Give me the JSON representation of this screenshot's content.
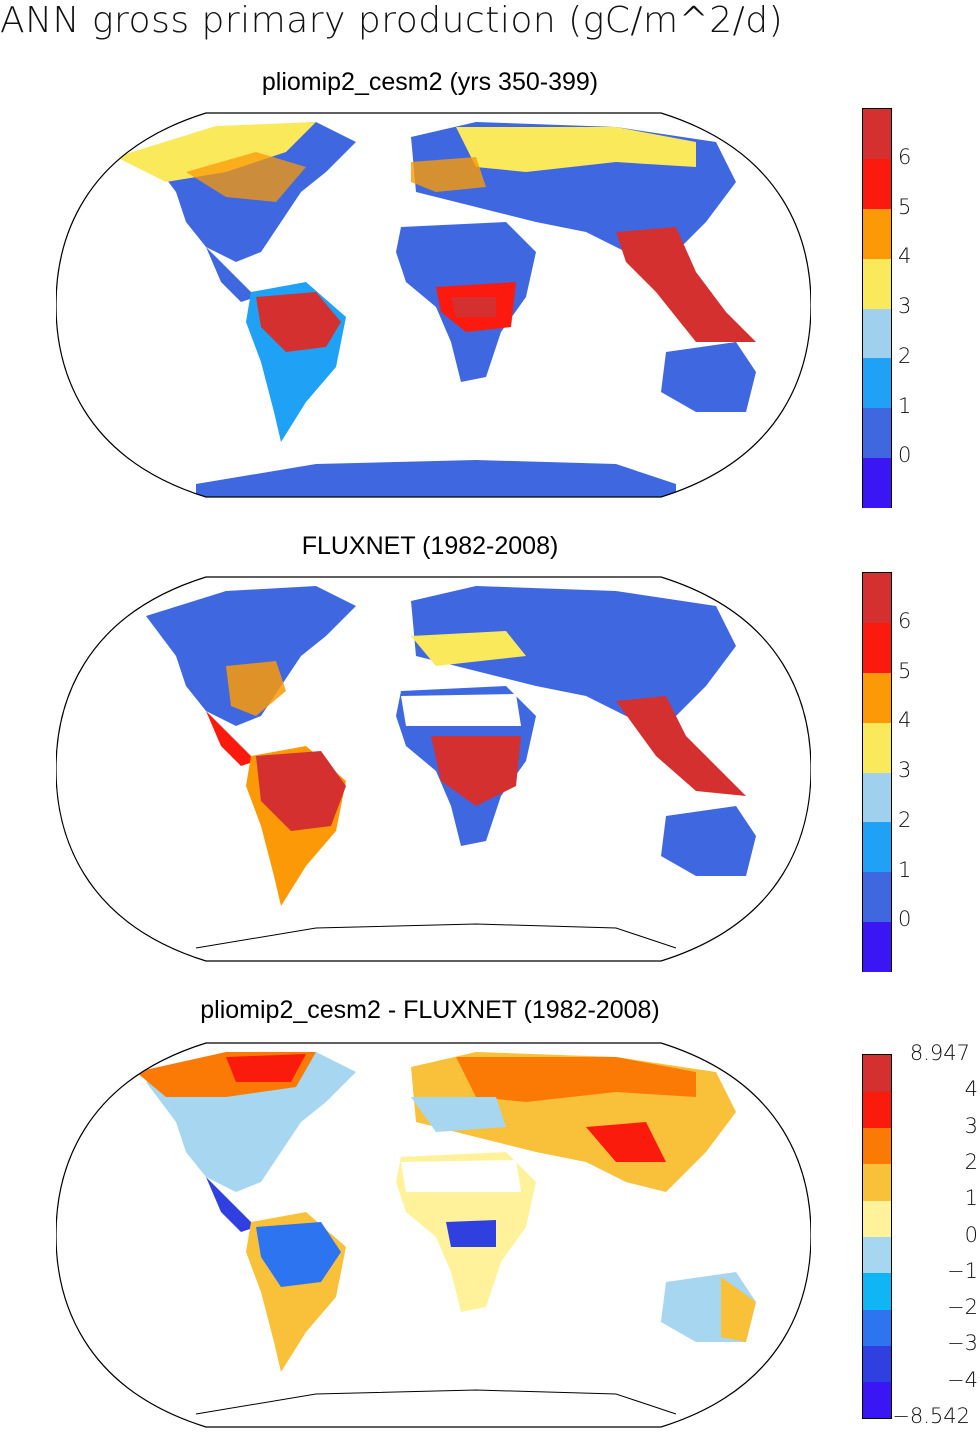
{
  "figure": {
    "title": "ANN gross primary production (gC/m^2/d)"
  },
  "panels": [
    {
      "title": "pliomip2_cesm2 (yrs 350-399)",
      "colorbar": {
        "colors": [
          "#3b16f5",
          "#3f68e0",
          "#1fa2f5",
          "#9fd0ee",
          "#fbe95c",
          "#fb9a06",
          "#fb1a0d",
          "#d4302f"
        ],
        "labels": [
          "0",
          "1",
          "2",
          "3",
          "4",
          "5",
          "6"
        ]
      }
    },
    {
      "title": "FLUXNET (1982-2008)",
      "colorbar": {
        "colors": [
          "#3b16f5",
          "#3f68e0",
          "#1fa2f5",
          "#9fd0ee",
          "#fbe95c",
          "#fb9a06",
          "#fb1a0d",
          "#d4302f"
        ],
        "labels": [
          "0",
          "1",
          "2",
          "3",
          "4",
          "5",
          "6"
        ]
      }
    },
    {
      "title": "pliomip2_cesm2 - FLUXNET (1982-2008)",
      "colorbar": {
        "colors": [
          "#3b16f5",
          "#2f3fe0",
          "#2d74f0",
          "#10b6f4",
          "#a6d6f0",
          "#fff29a",
          "#f9c03a",
          "#fb7a06",
          "#fa1b0c",
          "#d4302f"
        ],
        "labels": [
          "8.947",
          "4",
          "3",
          "2",
          "1",
          "0",
          "−1",
          "−2",
          "−3",
          "−4",
          "−8.542"
        ]
      }
    }
  ]
}
